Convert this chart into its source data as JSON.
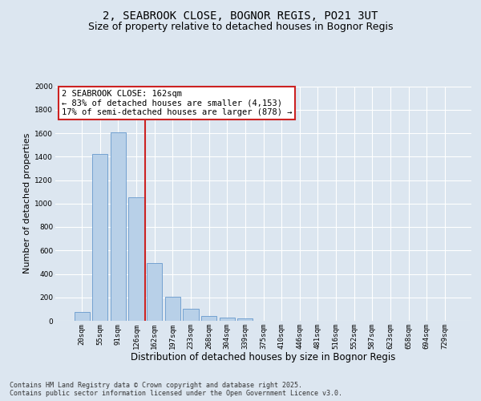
{
  "title_line1": "2, SEABROOK CLOSE, BOGNOR REGIS, PO21 3UT",
  "title_line2": "Size of property relative to detached houses in Bognor Regis",
  "xlabel": "Distribution of detached houses by size in Bognor Regis",
  "ylabel": "Number of detached properties",
  "categories": [
    "20sqm",
    "55sqm",
    "91sqm",
    "126sqm",
    "162sqm",
    "197sqm",
    "233sqm",
    "268sqm",
    "304sqm",
    "339sqm",
    "375sqm",
    "410sqm",
    "446sqm",
    "481sqm",
    "516sqm",
    "552sqm",
    "587sqm",
    "623sqm",
    "658sqm",
    "694sqm",
    "729sqm"
  ],
  "values": [
    75,
    1420,
    1610,
    1050,
    490,
    205,
    100,
    40,
    25,
    20,
    0,
    0,
    0,
    0,
    0,
    0,
    0,
    0,
    0,
    0,
    0
  ],
  "bar_color": "#b8d0e8",
  "bar_edge_color": "#6699cc",
  "vline_color": "#cc2222",
  "vline_bin": 4,
  "annotation_title": "2 SEABROOK CLOSE: 162sqm",
  "annotation_line1": "← 83% of detached houses are smaller (4,153)",
  "annotation_line2": "17% of semi-detached houses are larger (878) →",
  "annotation_box_edgecolor": "#cc2222",
  "ylim": [
    0,
    2000
  ],
  "yticks": [
    0,
    200,
    400,
    600,
    800,
    1000,
    1200,
    1400,
    1600,
    1800,
    2000
  ],
  "fig_bg_color": "#dce6f0",
  "plot_bg_color": "#dce6f0",
  "grid_color": "#ffffff",
  "footer_line1": "Contains HM Land Registry data © Crown copyright and database right 2025.",
  "footer_line2": "Contains public sector information licensed under the Open Government Licence v3.0.",
  "title_fontsize": 10,
  "subtitle_fontsize": 9,
  "xlabel_fontsize": 8.5,
  "ylabel_fontsize": 8,
  "tick_fontsize": 6.5,
  "annotation_fontsize": 7.5,
  "footer_fontsize": 6
}
